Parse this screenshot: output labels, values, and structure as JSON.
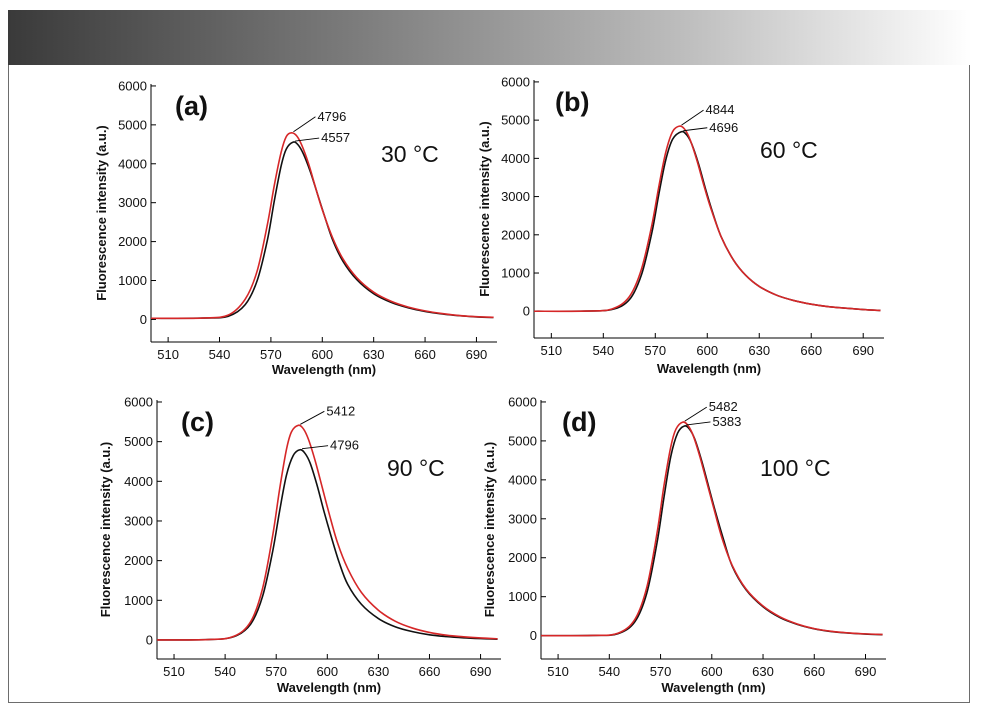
{
  "chart_data": [
    {
      "type": "line",
      "panel_label": "(a)",
      "temperature": "30 °C",
      "xlabel": "Wavelength (nm)",
      "ylabel": "Fluorescence intensity (a.u.)",
      "xlim": [
        500,
        702
      ],
      "ylim": [
        -580,
        6050
      ],
      "xticks": [
        510,
        540,
        570,
        600,
        630,
        660,
        690
      ],
      "yticks": [
        0,
        1000,
        2000,
        3000,
        4000,
        5000,
        6000
      ],
      "peak_labels": [
        "4796",
        "4557"
      ],
      "series": [
        {
          "name": "red",
          "color": "#d62728",
          "peak_value": 4796,
          "peak_x": 582.0,
          "baseline": 30,
          "x": [
            500,
            530,
            545,
            555,
            562,
            568,
            572,
            576,
            579,
            582,
            585,
            588,
            592,
            596,
            600,
            606,
            612,
            620,
            630,
            640,
            650,
            660,
            670,
            680,
            690,
            700
          ],
          "y": [
            30,
            35,
            110,
            520,
            1250,
            2450,
            3450,
            4300,
            4700,
            4796,
            4720,
            4480,
            4000,
            3400,
            2820,
            2100,
            1560,
            1080,
            700,
            470,
            320,
            220,
            150,
            100,
            70,
            55
          ]
        },
        {
          "name": "black",
          "color": "#111111",
          "peak_value": 4557,
          "peak_x": 583.0,
          "baseline": 30,
          "x": [
            500,
            530,
            545,
            555,
            562,
            568,
            572,
            576,
            579,
            583,
            586,
            589,
            593,
            597,
            601,
            606,
            612,
            620,
            630,
            640,
            650,
            660,
            670,
            680,
            690,
            700
          ],
          "y": [
            30,
            35,
            80,
            380,
            1000,
            2050,
            3050,
            3950,
            4380,
            4557,
            4480,
            4250,
            3800,
            3250,
            2700,
            2050,
            1500,
            1030,
            660,
            440,
            300,
            205,
            140,
            95,
            65,
            50
          ]
        }
      ]
    },
    {
      "type": "line",
      "panel_label": "(b)",
      "temperature": "60 °C",
      "xlabel": "Wavelength (nm)",
      "ylabel": "Fluorescence intensity (a.u.)",
      "xlim": [
        500,
        702
      ],
      "ylim": [
        -700,
        6050
      ],
      "xticks": [
        510,
        540,
        570,
        600,
        630,
        660,
        690
      ],
      "yticks": [
        0,
        1000,
        2000,
        3000,
        4000,
        5000,
        6000
      ],
      "peak_labels": [
        "4844",
        "4696"
      ],
      "series": [
        {
          "name": "red",
          "color": "#d62728",
          "peak_value": 4844,
          "peak_x": 584.0,
          "baseline": 0,
          "x": [
            500,
            530,
            545,
            555,
            562,
            568,
            572,
            576,
            580,
            584,
            587,
            590,
            594,
            598,
            602,
            608,
            615,
            622,
            630,
            640,
            650,
            660,
            670,
            680,
            690,
            700
          ],
          "y": [
            0,
            5,
            60,
            380,
            1100,
            2250,
            3250,
            4150,
            4700,
            4844,
            4760,
            4500,
            3950,
            3300,
            2700,
            1950,
            1350,
            950,
            650,
            420,
            280,
            185,
            120,
            80,
            45,
            20
          ]
        },
        {
          "name": "black",
          "color": "#111111",
          "peak_value": 4696,
          "peak_x": 585.0,
          "baseline": 0,
          "x": [
            500,
            530,
            545,
            555,
            562,
            568,
            572,
            576,
            580,
            585,
            588,
            591,
            595,
            599,
            603,
            608,
            615,
            622,
            630,
            640,
            650,
            660,
            670,
            680,
            690,
            700
          ],
          "y": [
            0,
            5,
            45,
            300,
            950,
            2050,
            3050,
            3950,
            4500,
            4696,
            4620,
            4380,
            3850,
            3200,
            2600,
            1950,
            1350,
            950,
            650,
            420,
            280,
            185,
            120,
            80,
            45,
            20
          ]
        }
      ]
    },
    {
      "type": "line",
      "panel_label": "(c)",
      "temperature": "90 °C",
      "xlabel": "Wavelength (nm)",
      "ylabel": "Fluorescence intensity (a.u.)",
      "xlim": [
        500,
        702
      ],
      "ylim": [
        -480,
        6050
      ],
      "xticks": [
        510,
        540,
        570,
        600,
        630,
        660,
        690
      ],
      "yticks": [
        0,
        1000,
        2000,
        3000,
        4000,
        5000,
        6000
      ],
      "peak_labels": [
        "5412",
        "4796"
      ],
      "series": [
        {
          "name": "red",
          "color": "#d62728",
          "peak_value": 5412,
          "peak_x": 583.0,
          "baseline": 0,
          "x": [
            500,
            530,
            545,
            555,
            562,
            568,
            572,
            576,
            579,
            583,
            586,
            589,
            593,
            597,
            601,
            606,
            612,
            620,
            630,
            640,
            650,
            660,
            670,
            680,
            690,
            700
          ],
          "y": [
            0,
            10,
            90,
            460,
            1300,
            2650,
            3800,
            4800,
            5250,
            5412,
            5320,
            5050,
            4500,
            3850,
            3200,
            2450,
            1800,
            1200,
            750,
            470,
            300,
            190,
            120,
            80,
            50,
            30
          ]
        },
        {
          "name": "black",
          "color": "#111111",
          "peak_value": 4796,
          "peak_x": 584.0,
          "baseline": 0,
          "x": [
            500,
            530,
            545,
            555,
            562,
            568,
            572,
            576,
            580,
            584,
            587,
            590,
            594,
            598,
            602,
            607,
            612,
            620,
            630,
            640,
            650,
            660,
            670,
            680,
            690,
            700
          ],
          "y": [
            0,
            10,
            80,
            400,
            1100,
            2250,
            3250,
            4150,
            4650,
            4796,
            4700,
            4450,
            3900,
            3250,
            2650,
            1950,
            1400,
            900,
            540,
            330,
            210,
            130,
            85,
            55,
            35,
            20
          ]
        }
      ]
    },
    {
      "type": "line",
      "panel_label": "(d)",
      "temperature": "100 °C",
      "xlabel": "Wavelength (nm)",
      "ylabel": "Fluorescence intensity (a.u.)",
      "xlim": [
        500,
        702
      ],
      "ylim": [
        -600,
        6050
      ],
      "xticks": [
        510,
        540,
        570,
        600,
        630,
        660,
        690
      ],
      "yticks": [
        0,
        1000,
        2000,
        3000,
        4000,
        5000,
        6000
      ],
      "peak_labels": [
        "5482",
        "5383"
      ],
      "series": [
        {
          "name": "red",
          "color": "#d62728",
          "peak_value": 5482,
          "peak_x": 583.0,
          "baseline": 0,
          "x": [
            500,
            530,
            545,
            555,
            562,
            568,
            572,
            576,
            579,
            583,
            586,
            589,
            593,
            597,
            601,
            606,
            612,
            620,
            630,
            640,
            650,
            660,
            670,
            680,
            690,
            700
          ],
          "y": [
            0,
            5,
            60,
            420,
            1250,
            2650,
            3850,
            4850,
            5300,
            5482,
            5400,
            5150,
            4600,
            3950,
            3300,
            2500,
            1800,
            1200,
            760,
            480,
            300,
            180,
            110,
            70,
            45,
            30
          ]
        },
        {
          "name": "black",
          "color": "#111111",
          "peak_value": 5383,
          "peak_x": 584.0,
          "baseline": 0,
          "x": [
            500,
            530,
            545,
            555,
            562,
            568,
            572,
            576,
            580,
            584,
            587,
            590,
            594,
            598,
            602,
            607,
            612,
            620,
            630,
            640,
            650,
            660,
            670,
            680,
            690,
            700
          ],
          "y": [
            0,
            5,
            50,
            360,
            1100,
            2400,
            3550,
            4600,
            5200,
            5383,
            5300,
            5050,
            4500,
            3850,
            3200,
            2450,
            1780,
            1180,
            740,
            460,
            290,
            175,
            105,
            65,
            40,
            25
          ]
        }
      ]
    }
  ]
}
